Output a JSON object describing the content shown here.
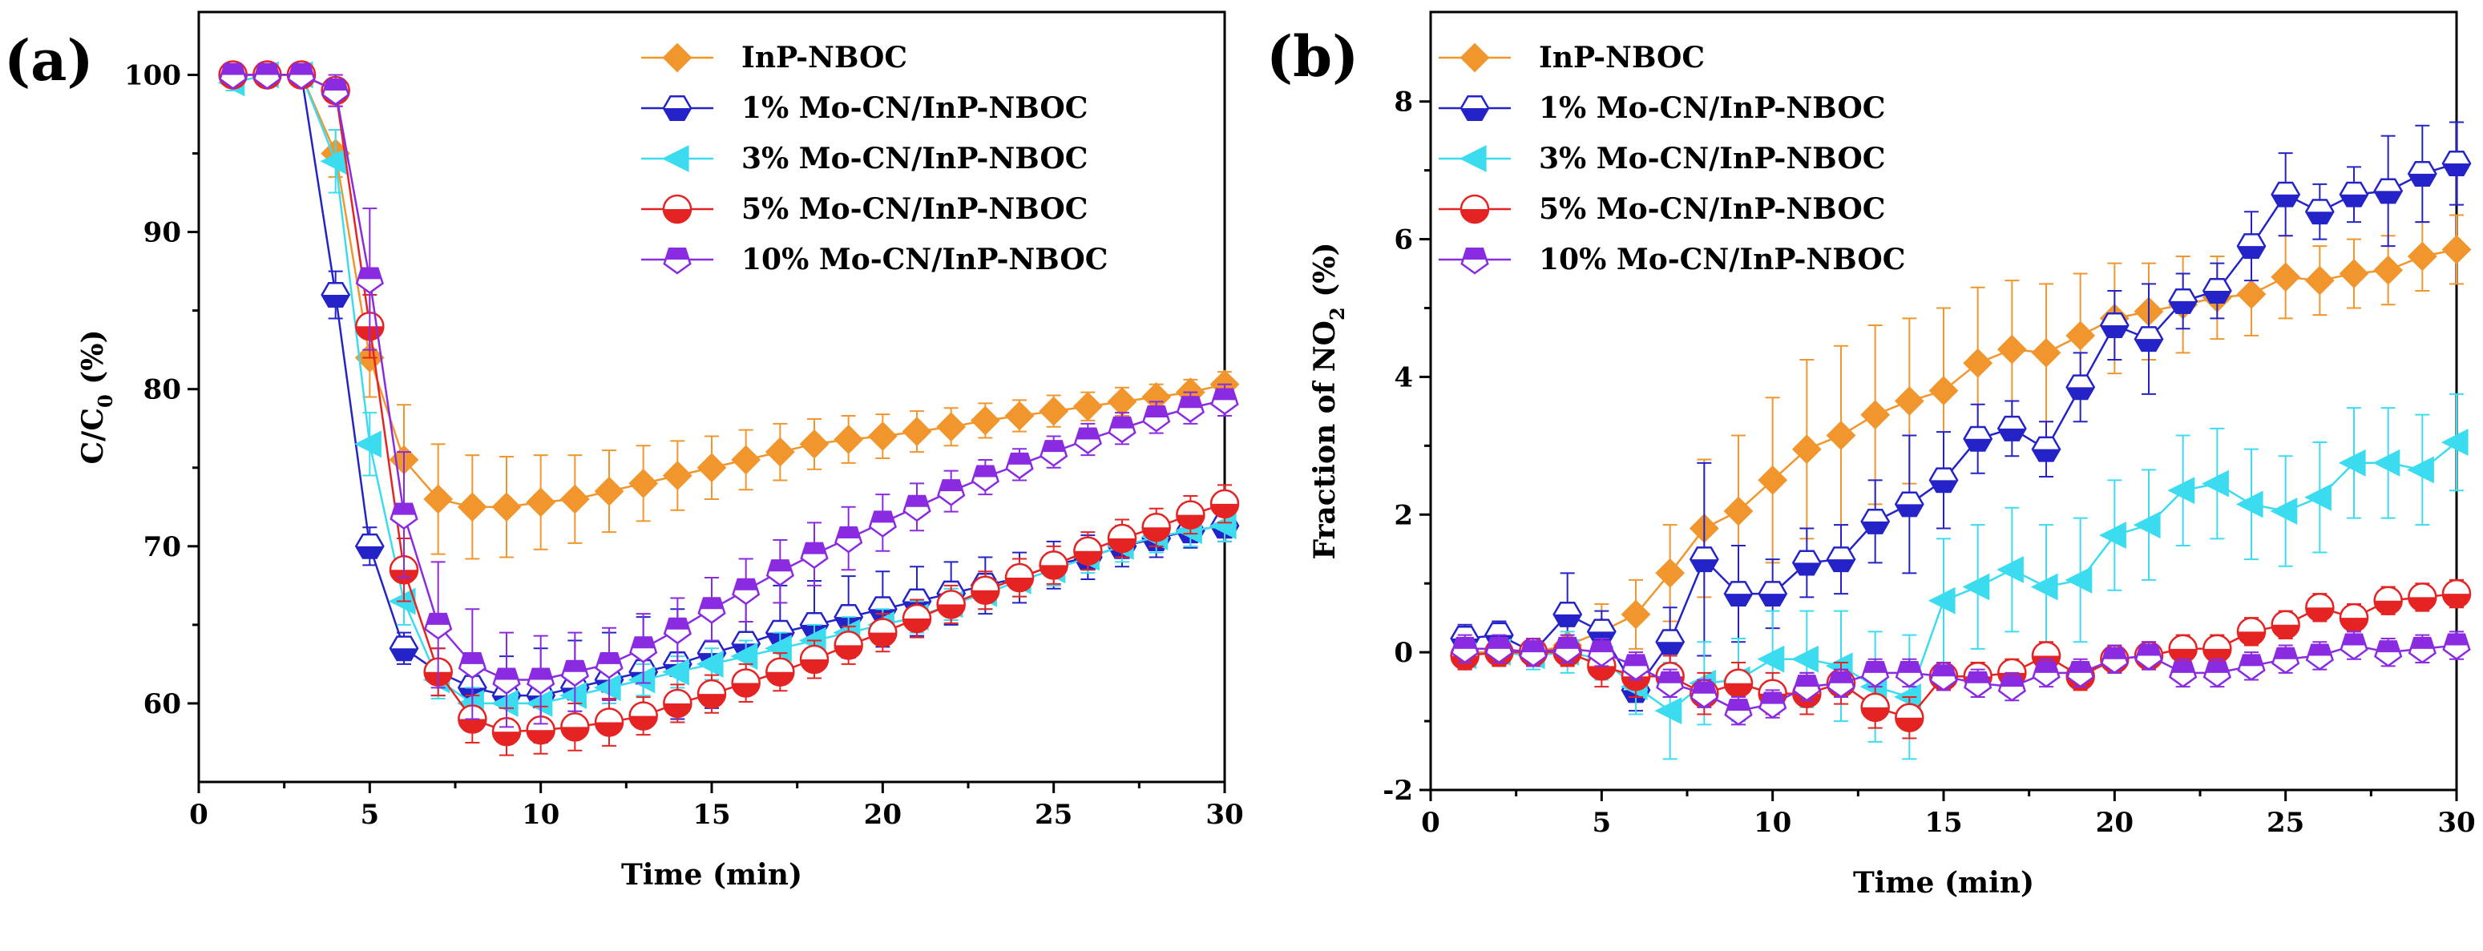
{
  "chart_data": [
    {
      "type": "line",
      "panel_label": "(a)",
      "xlabel": "Time (min)",
      "ylabel_main": "C/C",
      "ylabel_sub": "0",
      "ylabel_tail": " (%)",
      "xlim": [
        0,
        30
      ],
      "ylim": [
        55,
        104
      ],
      "xticks": [
        0,
        5,
        10,
        15,
        20,
        25,
        30
      ],
      "yticks": [
        60,
        70,
        80,
        90,
        100
      ],
      "legend_position": "top-right",
      "x": [
        1,
        2,
        3,
        4,
        5,
        6,
        7,
        8,
        9,
        10,
        11,
        12,
        13,
        14,
        15,
        16,
        17,
        18,
        19,
        20,
        21,
        22,
        23,
        24,
        25,
        26,
        27,
        28,
        29,
        30
      ],
      "series": [
        {
          "name": "InP-NBOC",
          "color": "#f0962d",
          "marker": "diamond",
          "fill": "full",
          "values": [
            100,
            100,
            100,
            95,
            82,
            75.5,
            73,
            72.5,
            72.5,
            72.8,
            73,
            73.5,
            74,
            74.5,
            75,
            75.5,
            76,
            76.5,
            76.8,
            77,
            77.3,
            77.6,
            78,
            78.3,
            78.6,
            78.9,
            79.2,
            79.5,
            79.8,
            80.3
          ],
          "errors": [
            0.5,
            0.5,
            0.5,
            1.5,
            2.5,
            3.5,
            3.5,
            3.3,
            3.2,
            3,
            2.8,
            2.6,
            2.4,
            2.2,
            2,
            1.9,
            1.8,
            1.6,
            1.5,
            1.4,
            1.3,
            1.2,
            1.1,
            1,
            1,
            0.9,
            0.9,
            0.8,
            0.8,
            0.8
          ]
        },
        {
          "name": "1% Mo-CN/InP-NBOC",
          "color": "#2323c8",
          "marker": "hexagon",
          "fill": "bottom",
          "values": [
            100,
            100,
            100,
            86,
            70,
            63.5,
            62,
            61,
            60.5,
            60.5,
            61,
            61.5,
            62,
            62.5,
            63.2,
            63.8,
            64.5,
            65,
            65.5,
            66,
            66.5,
            67,
            67.5,
            68,
            68.8,
            69.3,
            70,
            70.5,
            71,
            71.3
          ],
          "errors": [
            0.5,
            0.5,
            0.5,
            1.5,
            1.2,
            1,
            1.5,
            2,
            2.5,
            3,
            3,
            3,
            3.5,
            3.5,
            3.5,
            3.2,
            3,
            2.8,
            2.6,
            2.4,
            2.2,
            2,
            1.8,
            1.6,
            1.5,
            1.4,
            1.3,
            1.2,
            1.1,
            1
          ]
        },
        {
          "name": "3% Mo-CN/InP-NBOC",
          "color": "#3cdcf0",
          "marker": "triangle-left",
          "fill": "full",
          "values": [
            99.5,
            100,
            100,
            94.5,
            76.5,
            66.5,
            61.5,
            60,
            60,
            60,
            60.5,
            61,
            61.5,
            62,
            62.5,
            63,
            63.5,
            64,
            64.5,
            65,
            65.5,
            66.3,
            67,
            67.8,
            68.5,
            69.3,
            70,
            70.6,
            71,
            71.3
          ],
          "errors": [
            0.5,
            0.5,
            0.5,
            2,
            2,
            1.5,
            1.2,
            1,
            1,
            1,
            1,
            1,
            1,
            1,
            1,
            1,
            1,
            1,
            1,
            1,
            1,
            1,
            1,
            1,
            1,
            1,
            1,
            1,
            1,
            1
          ]
        },
        {
          "name": "5% Mo-CN/InP-NBOC",
          "color": "#e62323",
          "marker": "circle",
          "fill": "bottom",
          "values": [
            100,
            100,
            100,
            99,
            84,
            68.5,
            62,
            59,
            58.2,
            58.3,
            58.5,
            58.8,
            59.2,
            60,
            60.6,
            61.3,
            62,
            62.8,
            63.7,
            64.5,
            65.4,
            66.3,
            67.2,
            68,
            68.8,
            69.7,
            70.5,
            71.2,
            72,
            72.7
          ],
          "errors": [
            0.5,
            0.5,
            0.5,
            1,
            2,
            2,
            1.5,
            1.5,
            1.5,
            1.5,
            1.5,
            1.5,
            1.2,
            1.2,
            1.2,
            1.2,
            1.2,
            1.2,
            1.2,
            1.2,
            1.2,
            1.2,
            1.2,
            1.2,
            1.2,
            1.2,
            1.2,
            1.2,
            1.2,
            1.2
          ]
        },
        {
          "name": "10% Mo-CN/InP-NBOC",
          "color": "#8a2be2",
          "marker": "pentagon",
          "fill": "top",
          "values": [
            100,
            100,
            100,
            99,
            87,
            72,
            65,
            62.5,
            61.5,
            61.5,
            62,
            62.5,
            63.5,
            64.7,
            66,
            67.2,
            68.4,
            69.5,
            70.5,
            71.5,
            72.5,
            73.5,
            74.4,
            75.2,
            76,
            76.8,
            77.5,
            78.2,
            78.8,
            79.3
          ],
          "errors": [
            0.5,
            0.5,
            0.5,
            1,
            4.5,
            4,
            4,
            3.5,
            3,
            2.8,
            2.5,
            2.3,
            2.2,
            2,
            2,
            2,
            2,
            2,
            2,
            1.8,
            1.5,
            1.3,
            1.1,
            1,
            1,
            1,
            1,
            1,
            1,
            1
          ]
        }
      ]
    },
    {
      "type": "line",
      "panel_label": "(b)",
      "xlabel": "Time (min)",
      "ylabel_main": "Fraction of NO",
      "ylabel_sub": "2",
      "ylabel_tail": " (%)",
      "xlim": [
        0,
        30
      ],
      "ylim": [
        -2,
        9.3
      ],
      "xticks": [
        0,
        5,
        10,
        15,
        20,
        25,
        30
      ],
      "yticks": [
        -2,
        0,
        2,
        4,
        6,
        8
      ],
      "legend_position": "top-left",
      "x": [
        1,
        2,
        3,
        4,
        5,
        6,
        7,
        8,
        9,
        10,
        11,
        12,
        13,
        14,
        15,
        16,
        17,
        18,
        19,
        20,
        21,
        22,
        23,
        24,
        25,
        26,
        27,
        28,
        29,
        30
      ],
      "series": [
        {
          "name": "InP-NBOC",
          "color": "#f0962d",
          "marker": "diamond",
          "fill": "full",
          "values": [
            0,
            0,
            0,
            0.1,
            0.3,
            0.55,
            1.15,
            1.8,
            2.05,
            2.5,
            2.95,
            3.15,
            3.45,
            3.65,
            3.8,
            4.2,
            4.4,
            4.35,
            4.6,
            4.85,
            4.95,
            5.05,
            5.15,
            5.2,
            5.45,
            5.4,
            5.5,
            5.55,
            5.75,
            5.85
          ],
          "errors": [
            0.2,
            0.2,
            0.2,
            0.3,
            0.4,
            0.5,
            0.7,
            1,
            1.1,
            1.2,
            1.3,
            1.3,
            1.3,
            1.2,
            1.2,
            1.1,
            1,
            1,
            0.9,
            0.8,
            0.7,
            0.7,
            0.6,
            0.6,
            0.6,
            0.5,
            0.5,
            0.5,
            0.5,
            0.5
          ]
        },
        {
          "name": "1% Mo-CN/InP-NBOC",
          "color": "#2323c8",
          "marker": "hexagon",
          "fill": "bottom",
          "values": [
            0.2,
            0.25,
            0,
            0.55,
            0.3,
            -0.55,
            0.15,
            1.35,
            0.85,
            0.85,
            1.3,
            1.35,
            1.9,
            2.15,
            2.5,
            3.1,
            3.25,
            2.95,
            3.85,
            4.75,
            4.55,
            5.1,
            5.25,
            5.9,
            6.65,
            6.4,
            6.65,
            6.7,
            6.95,
            7.1
          ],
          "errors": [
            0.2,
            0.2,
            0.2,
            0.6,
            0.3,
            0.3,
            0.5,
            1.4,
            0.7,
            0.5,
            0.5,
            0.5,
            0.6,
            1,
            0.7,
            0.5,
            0.4,
            0.4,
            0.5,
            0.5,
            0.8,
            0.4,
            0.4,
            0.5,
            0.6,
            0.4,
            0.4,
            0.8,
            0.7,
            0.6
          ]
        },
        {
          "name": "3% Mo-CN/InP-NBOC",
          "color": "#3cdcf0",
          "marker": "triangle-left",
          "fill": "full",
          "values": [
            -0.05,
            0,
            -0.05,
            0,
            -0.1,
            -0.5,
            -0.85,
            -0.45,
            -0.4,
            -0.1,
            -0.1,
            -0.2,
            -0.5,
            -0.65,
            0.75,
            0.95,
            1.2,
            0.95,
            1.05,
            1.7,
            1.85,
            2.35,
            2.45,
            2.15,
            2.05,
            2.25,
            2.75,
            2.75,
            2.65,
            3.05
          ],
          "errors": [
            0.2,
            0.2,
            0.2,
            0.3,
            0.3,
            0.4,
            0.7,
            0.6,
            0.6,
            0.7,
            0.7,
            0.8,
            0.8,
            0.9,
            0.9,
            0.9,
            0.9,
            0.9,
            0.9,
            0.8,
            0.8,
            0.8,
            0.8,
            0.8,
            0.8,
            0.8,
            0.8,
            0.8,
            0.8,
            0.7
          ]
        },
        {
          "name": "5% Mo-CN/InP-NBOC",
          "color": "#e62323",
          "marker": "circle",
          "fill": "bottom",
          "values": [
            -0.05,
            0,
            0,
            0,
            -0.2,
            -0.35,
            -0.35,
            -0.6,
            -0.45,
            -0.6,
            -0.6,
            -0.45,
            -0.8,
            -0.95,
            -0.35,
            -0.35,
            -0.3,
            -0.05,
            -0.35,
            -0.1,
            -0.05,
            0.05,
            0.05,
            0.3,
            0.4,
            0.65,
            0.5,
            0.75,
            0.8,
            0.85
          ],
          "errors": [
            0.2,
            0.2,
            0.2,
            0.2,
            0.3,
            0.3,
            0.3,
            0.3,
            0.3,
            0.3,
            0.3,
            0.3,
            0.3,
            0.3,
            0.2,
            0.2,
            0.2,
            0.2,
            0.2,
            0.2,
            0.2,
            0.2,
            0.2,
            0.2,
            0.2,
            0.2,
            0.2,
            0.2,
            0.2,
            0.2
          ]
        },
        {
          "name": "10% Mo-CN/InP-NBOC",
          "color": "#8a2be2",
          "marker": "pentagon",
          "fill": "top",
          "values": [
            0.05,
            0.05,
            0,
            0.05,
            0,
            -0.2,
            -0.45,
            -0.6,
            -0.85,
            -0.75,
            -0.5,
            -0.45,
            -0.3,
            -0.3,
            -0.35,
            -0.45,
            -0.5,
            -0.3,
            -0.3,
            -0.1,
            -0.05,
            -0.3,
            -0.3,
            -0.2,
            -0.1,
            -0.05,
            0.1,
            0,
            0.05,
            0.1
          ],
          "errors": [
            0.2,
            0.2,
            0.2,
            0.2,
            0.2,
            0.2,
            0.2,
            0.2,
            0.2,
            0.2,
            0.2,
            0.2,
            0.2,
            0.2,
            0.2,
            0.2,
            0.2,
            0.2,
            0.2,
            0.2,
            0.2,
            0.2,
            0.2,
            0.2,
            0.2,
            0.2,
            0.2,
            0.2,
            0.2,
            0.2
          ]
        }
      ]
    }
  ]
}
